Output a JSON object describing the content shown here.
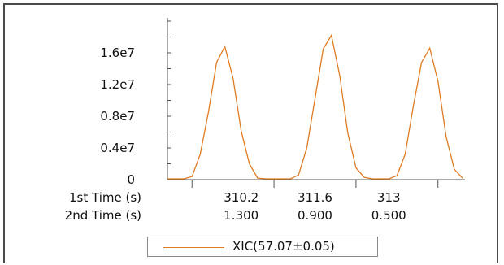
{
  "chart_data": {
    "type": "line",
    "title": "",
    "xlabel": "",
    "ylabel": "",
    "ylim": [
      0,
      20000000
    ],
    "grid": false,
    "legend_placement": "bottom",
    "y_ticks": [
      {
        "value": 0,
        "label": "0"
      },
      {
        "value": 4000000,
        "label": "0.4e7"
      },
      {
        "value": 8000000,
        "label": "0.8e7"
      },
      {
        "value": 12000000,
        "label": "1.2e7"
      },
      {
        "value": 16000000,
        "label": "1.6e7"
      }
    ],
    "x_axis_rows": [
      {
        "label": "1st Time (s)",
        "ticks": [
          "310.2",
          "311.6",
          "313"
        ]
      },
      {
        "label": "2nd Time (s)",
        "ticks": [
          "1.300",
          "0.900",
          "0.500"
        ]
      }
    ],
    "x_index_range": [
      0,
      36
    ],
    "x_major_tick_indices": [
      3,
      13,
      23,
      33
    ],
    "x_label_indices": [
      9,
      18,
      27
    ],
    "series": [
      {
        "name": "XIC(57.07±0.05)",
        "color": "#e07b20",
        "x": [
          0,
          1,
          2,
          3,
          4,
          5,
          6,
          7,
          8,
          9,
          10,
          11,
          12,
          13,
          14,
          15,
          16,
          17,
          18,
          19,
          20,
          21,
          22,
          23,
          24,
          25,
          26,
          27,
          28,
          29,
          30,
          31,
          32,
          33,
          34,
          35,
          36
        ],
        "values": [
          100000,
          100000,
          100000,
          400000,
          3200000,
          8500000,
          14800000,
          16800000,
          12800000,
          6100000,
          2000000,
          200000,
          100000,
          100000,
          100000,
          100000,
          600000,
          4000000,
          10200000,
          16500000,
          18200000,
          13200000,
          5900000,
          1500000,
          300000,
          100000,
          100000,
          100000,
          500000,
          3200000,
          9300000,
          14800000,
          16600000,
          12400000,
          5400000,
          1300000,
          200000
        ]
      }
    ]
  }
}
